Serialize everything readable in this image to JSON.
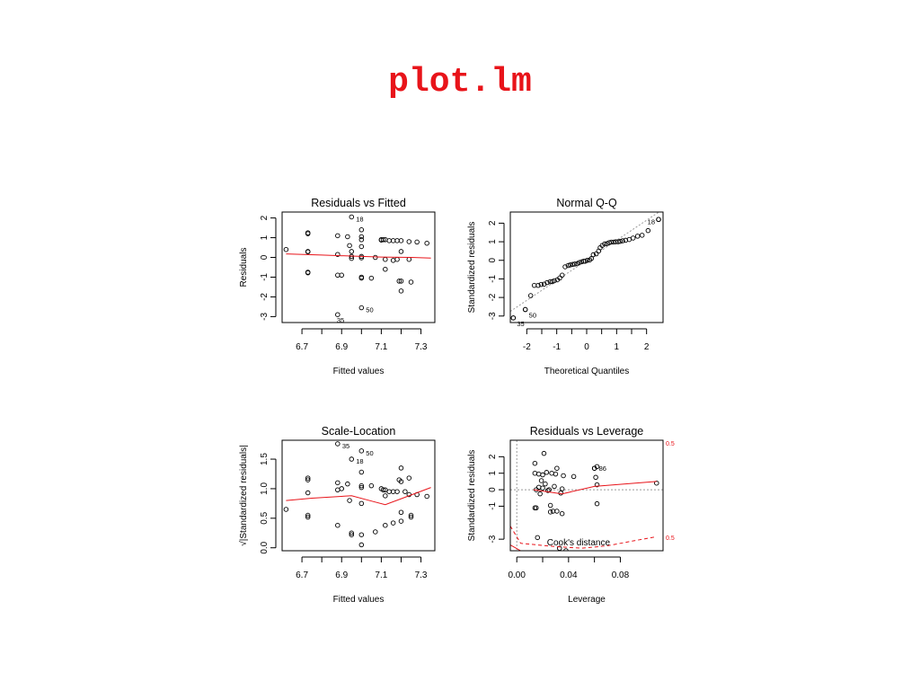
{
  "slide": {
    "title": "plot.lm"
  },
  "colors": {
    "title": "#e8141a",
    "smooth": "#e8141a",
    "points": "#000000",
    "reference": "#9a9a9a"
  },
  "chart_data": [
    {
      "type": "scatter",
      "title": "Residuals vs Fitted",
      "xlabel": "Fitted values",
      "ylabel": "Residuals",
      "xlim": [
        6.6,
        7.37
      ],
      "ylim": [
        -3.3,
        2.3
      ],
      "xticks": [
        6.7,
        6.9,
        7.1,
        7.3
      ],
      "yticks": [
        -3,
        -2,
        -1,
        0,
        1,
        2
      ],
      "points": [
        [
          6.62,
          0.4
        ],
        [
          6.73,
          1.2
        ],
        [
          6.73,
          1.25
        ],
        [
          6.73,
          0.28
        ],
        [
          6.73,
          0.3
        ],
        [
          6.73,
          -0.75
        ],
        [
          6.73,
          -0.78
        ],
        [
          6.88,
          1.1
        ],
        [
          6.88,
          0.15
        ],
        [
          6.88,
          -0.9
        ],
        [
          6.9,
          -0.9
        ],
        [
          6.93,
          1.05
        ],
        [
          6.94,
          0.6
        ],
        [
          6.95,
          0.3
        ],
        [
          6.95,
          0.05
        ],
        [
          6.95,
          -0.05
        ],
        [
          7.0,
          1.4
        ],
        [
          7.0,
          1.05
        ],
        [
          7.0,
          0.9
        ],
        [
          7.0,
          0.55
        ],
        [
          7.0,
          0.05
        ],
        [
          7.0,
          -0.02
        ],
        [
          7.0,
          -1.0
        ],
        [
          7.0,
          -1.05
        ],
        [
          7.05,
          -1.05
        ],
        [
          7.07,
          0.0
        ],
        [
          7.1,
          0.9
        ],
        [
          7.1,
          0.88
        ],
        [
          7.11,
          0.9
        ],
        [
          7.12,
          0.9
        ],
        [
          7.12,
          -0.1
        ],
        [
          7.12,
          -0.6
        ],
        [
          7.14,
          0.85
        ],
        [
          7.16,
          0.85
        ],
        [
          7.16,
          -0.15
        ],
        [
          7.18,
          0.85
        ],
        [
          7.18,
          -0.1
        ],
        [
          7.19,
          -1.2
        ],
        [
          7.2,
          -1.2
        ],
        [
          7.2,
          -1.7
        ],
        [
          7.2,
          0.85
        ],
        [
          7.2,
          0.3
        ],
        [
          7.24,
          0.8
        ],
        [
          7.24,
          -0.1
        ],
        [
          7.25,
          -1.25
        ],
        [
          7.28,
          0.78
        ],
        [
          7.33,
          0.72
        ]
      ],
      "labeled_points": [
        {
          "label": "18",
          "x": 6.95,
          "y": 2.05
        },
        {
          "label": "50",
          "x": 7.0,
          "y": -2.55
        },
        {
          "label": "35",
          "x": 6.88,
          "y": -2.9
        }
      ],
      "smooth": [
        [
          6.62,
          0.18
        ],
        [
          6.8,
          0.12
        ],
        [
          6.95,
          0.07
        ],
        [
          7.1,
          0.02
        ],
        [
          7.25,
          0.0
        ],
        [
          7.35,
          -0.03
        ]
      ]
    },
    {
      "type": "scatter",
      "title": "Normal Q-Q",
      "xlabel": "Theoretical Quantiles",
      "ylabel": "Standardized residuals",
      "xlim": [
        -2.55,
        2.55
      ],
      "ylim": [
        -3.35,
        2.6
      ],
      "xticks": [
        -2,
        -1,
        0,
        1,
        2
      ],
      "yticks": [
        -3,
        -2,
        -1,
        0,
        1,
        2
      ],
      "points": [
        [
          -2.45,
          -3.1
        ],
        [
          -2.05,
          -2.65
        ],
        [
          -1.87,
          -1.9
        ],
        [
          -1.75,
          -1.35
        ],
        [
          -1.62,
          -1.35
        ],
        [
          -1.52,
          -1.3
        ],
        [
          -1.42,
          -1.28
        ],
        [
          -1.32,
          -1.2
        ],
        [
          -1.22,
          -1.15
        ],
        [
          -1.15,
          -1.15
        ],
        [
          -1.08,
          -1.1
        ],
        [
          -0.98,
          -1.05
        ],
        [
          -0.9,
          -0.95
        ],
        [
          -0.82,
          -0.8
        ],
        [
          -0.72,
          -0.35
        ],
        [
          -0.62,
          -0.28
        ],
        [
          -0.55,
          -0.25
        ],
        [
          -0.47,
          -0.22
        ],
        [
          -0.4,
          -0.2
        ],
        [
          -0.32,
          -0.18
        ],
        [
          -0.25,
          -0.12
        ],
        [
          -0.17,
          -0.08
        ],
        [
          -0.1,
          -0.05
        ],
        [
          -0.05,
          -0.05
        ],
        [
          0.02,
          0.0
        ],
        [
          0.1,
          0.02
        ],
        [
          0.16,
          0.1
        ],
        [
          0.22,
          0.3
        ],
        [
          0.32,
          0.35
        ],
        [
          0.4,
          0.5
        ],
        [
          0.45,
          0.68
        ],
        [
          0.52,
          0.8
        ],
        [
          0.6,
          0.88
        ],
        [
          0.68,
          0.9
        ],
        [
          0.75,
          0.95
        ],
        [
          0.82,
          0.98
        ],
        [
          0.9,
          0.98
        ],
        [
          0.97,
          1.0
        ],
        [
          1.05,
          1.0
        ],
        [
          1.12,
          1.02
        ],
        [
          1.2,
          1.05
        ],
        [
          1.3,
          1.08
        ],
        [
          1.42,
          1.12
        ],
        [
          1.55,
          1.2
        ],
        [
          1.7,
          1.3
        ],
        [
          1.85,
          1.35
        ],
        [
          2.05,
          1.6
        ],
        [
          2.4,
          2.2
        ]
      ],
      "labeled_points": [
        {
          "label": "18",
          "x": 2.4,
          "y": 2.2
        },
        {
          "label": "50",
          "x": -2.05,
          "y": -2.65
        },
        {
          "label": "35",
          "x": -2.45,
          "y": -3.1
        }
      ],
      "reference_line": [
        [
          -2.55,
          -2.75
        ],
        [
          2.55,
          2.75
        ]
      ]
    },
    {
      "type": "scatter",
      "title": "Scale-Location",
      "xlabel": "Fitted values",
      "ylabel": "√|Standardized residuals|",
      "xlim": [
        6.6,
        7.37
      ],
      "ylim": [
        -0.05,
        1.82
      ],
      "xticks": [
        6.7,
        6.9,
        7.1,
        7.3
      ],
      "yticks": [
        0.0,
        0.5,
        1.0,
        1.5
      ],
      "points": [
        [
          6.62,
          0.65
        ],
        [
          6.73,
          1.18
        ],
        [
          6.73,
          1.15
        ],
        [
          6.73,
          0.93
        ],
        [
          6.73,
          0.52
        ],
        [
          6.73,
          0.55
        ],
        [
          6.88,
          1.1
        ],
        [
          6.88,
          0.98
        ],
        [
          6.88,
          0.38
        ],
        [
          6.9,
          1.0
        ],
        [
          6.93,
          1.08
        ],
        [
          6.94,
          0.8
        ],
        [
          6.95,
          0.25
        ],
        [
          6.95,
          0.22
        ],
        [
          7.0,
          1.28
        ],
        [
          7.0,
          1.05
        ],
        [
          7.0,
          1.02
        ],
        [
          7.0,
          0.75
        ],
        [
          7.0,
          0.22
        ],
        [
          7.0,
          0.05
        ],
        [
          7.05,
          1.05
        ],
        [
          7.07,
          0.27
        ],
        [
          7.1,
          1.0
        ],
        [
          7.11,
          0.98
        ],
        [
          7.12,
          0.98
        ],
        [
          7.12,
          0.88
        ],
        [
          7.12,
          0.38
        ],
        [
          7.14,
          0.95
        ],
        [
          7.16,
          0.95
        ],
        [
          7.16,
          0.42
        ],
        [
          7.18,
          0.95
        ],
        [
          7.19,
          1.15
        ],
        [
          7.2,
          1.12
        ],
        [
          7.2,
          1.35
        ],
        [
          7.2,
          0.45
        ],
        [
          7.2,
          0.6
        ],
        [
          7.22,
          0.95
        ],
        [
          7.24,
          1.18
        ],
        [
          7.24,
          0.9
        ],
        [
          7.25,
          0.52
        ],
        [
          7.25,
          0.55
        ],
        [
          7.28,
          0.9
        ],
        [
          7.33,
          0.87
        ]
      ],
      "labeled_points": [
        {
          "label": "35",
          "x": 6.88,
          "y": 1.76
        },
        {
          "label": "50",
          "x": 7.0,
          "y": 1.64
        },
        {
          "label": "18",
          "x": 6.95,
          "y": 1.5
        }
      ],
      "smooth": [
        [
          6.62,
          0.8
        ],
        [
          6.75,
          0.84
        ],
        [
          6.95,
          0.88
        ],
        [
          7.05,
          0.79
        ],
        [
          7.12,
          0.73
        ],
        [
          7.2,
          0.83
        ],
        [
          7.28,
          0.93
        ],
        [
          7.35,
          1.02
        ]
      ]
    },
    {
      "type": "scatter",
      "title": "Residuals vs Leverage",
      "xlabel": "Leverage",
      "ylabel": "Standardized residuals",
      "xlim": [
        -0.005,
        0.113
      ],
      "ylim": [
        -3.7,
        3.0
      ],
      "xticks": [
        0.0,
        0.04,
        0.08
      ],
      "yticks": [
        -3,
        -1,
        0,
        1,
        2
      ],
      "points": [
        [
          0.014,
          1.6
        ],
        [
          0.014,
          1.0
        ],
        [
          0.014,
          -1.1
        ],
        [
          0.015,
          -1.1
        ],
        [
          0.015,
          0.0
        ],
        [
          0.016,
          -2.9
        ],
        [
          0.017,
          0.15
        ],
        [
          0.017,
          0.95
        ],
        [
          0.018,
          -0.25
        ],
        [
          0.019,
          0.55
        ],
        [
          0.02,
          0.9
        ],
        [
          0.02,
          0.1
        ],
        [
          0.021,
          2.2
        ],
        [
          0.022,
          0.35
        ],
        [
          0.023,
          1.05
        ],
        [
          0.024,
          -0.05
        ],
        [
          0.025,
          0.0
        ],
        [
          0.026,
          -0.95
        ],
        [
          0.026,
          -1.35
        ],
        [
          0.027,
          1.0
        ],
        [
          0.028,
          -1.3
        ],
        [
          0.029,
          0.2
        ],
        [
          0.03,
          0.95
        ],
        [
          0.031,
          1.3
        ],
        [
          0.031,
          -1.3
        ],
        [
          0.033,
          -3.55
        ],
        [
          0.034,
          -0.2
        ],
        [
          0.035,
          -1.45
        ],
        [
          0.035,
          0.05
        ],
        [
          0.036,
          0.85
        ],
        [
          0.038,
          -3.7
        ],
        [
          0.044,
          0.8
        ],
        [
          0.06,
          1.3
        ],
        [
          0.061,
          0.75
        ],
        [
          0.062,
          1.4
        ],
        [
          0.062,
          0.3
        ],
        [
          0.062,
          -0.85
        ],
        [
          0.108,
          0.4
        ]
      ],
      "labeled_points": [
        {
          "label": "86",
          "x": 0.06,
          "y": 1.3
        }
      ],
      "smooth": [
        [
          0.013,
          0.0
        ],
        [
          0.035,
          -0.25
        ],
        [
          0.06,
          0.2
        ],
        [
          0.108,
          0.5
        ]
      ],
      "cooks_distance": {
        "label": "Cook's distance",
        "contour_labels": [
          "0.5",
          "0.5"
        ],
        "upper": [
          [
            0.098,
            3.0
          ],
          [
            0.108,
            3.0
          ]
        ],
        "lower": [
          [
            -0.005,
            -2.2
          ],
          [
            0.003,
            -3.25
          ],
          [
            0.01,
            -3.3
          ],
          [
            0.03,
            -3.45
          ],
          [
            0.05,
            -3.55
          ],
          [
            0.07,
            -3.4
          ],
          [
            0.09,
            -3.1
          ],
          [
            0.108,
            -2.85
          ]
        ],
        "left": [
          [
            -0.005,
            -3.35
          ],
          [
            0.003,
            -3.7
          ]
        ]
      },
      "reference_lines": {
        "h": 0,
        "v": 0
      }
    }
  ]
}
